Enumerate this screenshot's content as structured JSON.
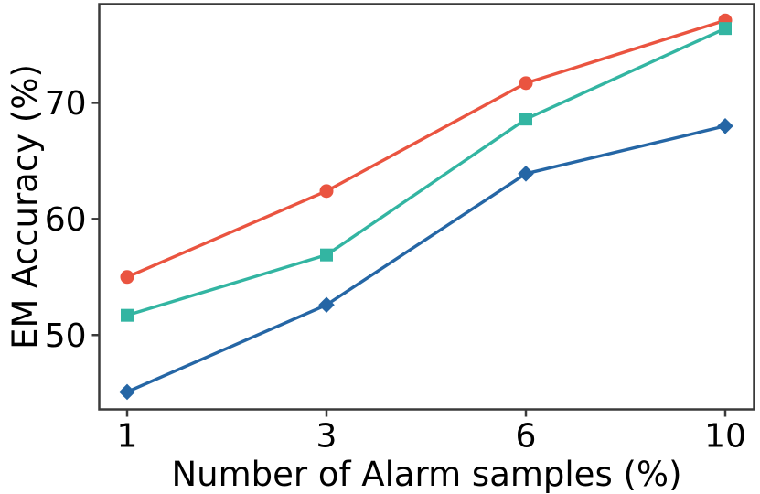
{
  "figure": {
    "background": "#ffffff",
    "axis_border_color": "#3a3a3a",
    "text_color": "#000000"
  },
  "chart_data": {
    "type": "line",
    "xlabel": "Number of Alarm samples (%)",
    "ylabel": "EM Accuracy (%)",
    "x": [
      1,
      3,
      6,
      10
    ],
    "x_tick_labels": [
      "1",
      "3",
      "6",
      "10"
    ],
    "y_ticks": [
      50,
      60,
      70
    ],
    "y_tick_labels": [
      "50",
      "60",
      "70"
    ],
    "ylim": [
      43.6,
      78.5
    ],
    "x_scale": "equally-spaced-categories",
    "grid": false,
    "legend": "none",
    "series": [
      {
        "name": "red-circle-series",
        "marker": "circle",
        "color": "#EA5440",
        "values": [
          55.0,
          62.4,
          71.7,
          77.1
        ]
      },
      {
        "name": "teal-square-series",
        "marker": "square",
        "color": "#33B5A2",
        "values": [
          51.7,
          56.9,
          68.6,
          76.4
        ]
      },
      {
        "name": "blue-diamond-series",
        "marker": "diamond",
        "color": "#2566A5",
        "values": [
          45.1,
          52.6,
          63.9,
          68.0
        ]
      }
    ]
  }
}
